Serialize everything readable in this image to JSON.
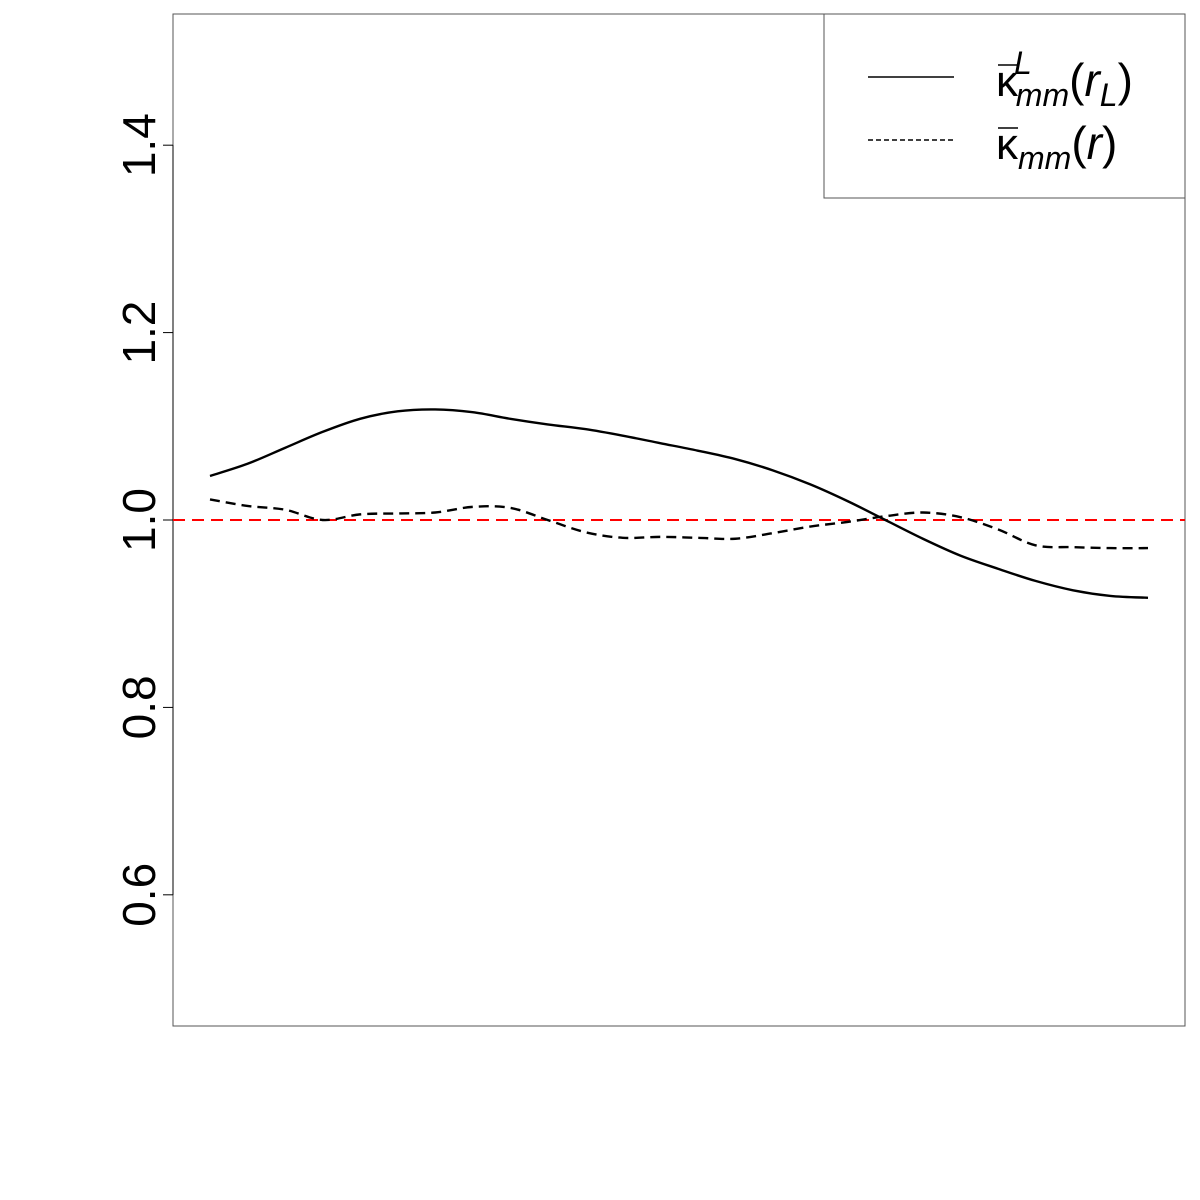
{
  "chart_data": {
    "type": "line",
    "title": "",
    "xlabel": "",
    "ylabel": "",
    "xlim": [
      0,
      1
    ],
    "ylim": [
      0.46,
      1.54
    ],
    "yticks": [
      0.6,
      0.8,
      1.0,
      1.2,
      1.4
    ],
    "ytick_labels": [
      "0.6",
      "0.8",
      "1.0",
      "1.2",
      "1.4"
    ],
    "grid": false,
    "legend_position": "top-right",
    "reference_line": {
      "y": 1.0,
      "color": "#ff0000",
      "style": "dashed"
    },
    "series": [
      {
        "name": "κmm L (rL)",
        "legend": {
          "symbol": "κ",
          "sub": "mm",
          "sup": "L",
          "arg": "r",
          "arg_sub": "L"
        },
        "style": "solid",
        "color": "#000000",
        "x": [
          0,
          0.04,
          0.08,
          0.12,
          0.16,
          0.2,
          0.24,
          0.28,
          0.32,
          0.36,
          0.4,
          0.44,
          0.48,
          0.52,
          0.56,
          0.6,
          0.64,
          0.68,
          0.72,
          0.76,
          0.8,
          0.84,
          0.88,
          0.92,
          0.96,
          1.0
        ],
        "y": [
          1.047,
          1.06,
          1.077,
          1.094,
          1.108,
          1.116,
          1.118,
          1.115,
          1.108,
          1.102,
          1.097,
          1.09,
          1.082,
          1.074,
          1.065,
          1.053,
          1.038,
          1.02,
          1.0,
          0.98,
          0.962,
          0.948,
          0.935,
          0.925,
          0.919,
          0.917
        ]
      },
      {
        "name": "κmm (r)",
        "legend": {
          "symbol": "κ",
          "sub": "mm",
          "sup": "",
          "arg": "r",
          "arg_sub": ""
        },
        "style": "dashed",
        "color": "#000000",
        "x": [
          0,
          0.04,
          0.08,
          0.12,
          0.16,
          0.2,
          0.24,
          0.28,
          0.32,
          0.36,
          0.4,
          0.44,
          0.48,
          0.52,
          0.56,
          0.6,
          0.64,
          0.68,
          0.72,
          0.76,
          0.8,
          0.84,
          0.88,
          0.92,
          0.96,
          1.0
        ],
        "y": [
          1.022,
          1.015,
          1.011,
          1.0,
          1.006,
          1.007,
          1.008,
          1.014,
          1.013,
          1.0,
          0.987,
          0.981,
          0.982,
          0.981,
          0.98,
          0.986,
          0.993,
          0.998,
          1.004,
          1.008,
          1.003,
          0.99,
          0.973,
          0.971,
          0.97,
          0.97
        ]
      }
    ]
  }
}
